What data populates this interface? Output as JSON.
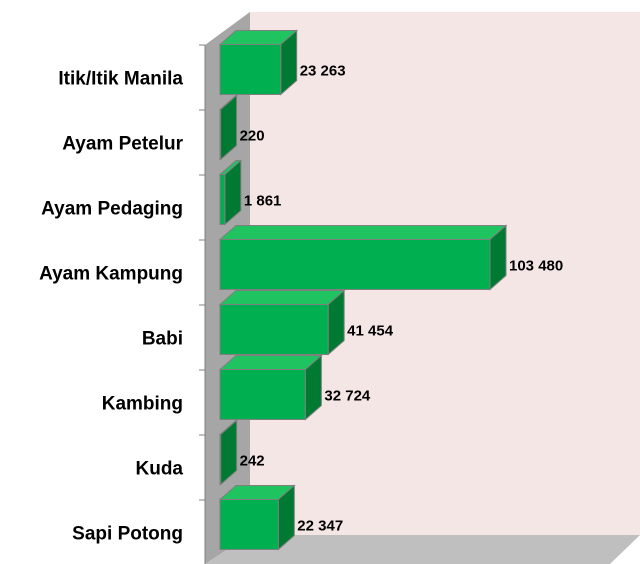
{
  "chart_data": {
    "type": "bar3d_horizontal",
    "categories": [
      "Itik/Itik Manila",
      "Ayam Petelur",
      "Ayam Pedaging",
      "Ayam Kampung",
      "Babi",
      "Kambing",
      "Kuda",
      "Sapi Potong"
    ],
    "values": [
      23263,
      220,
      1861,
      103480,
      41454,
      32724,
      242,
      22347
    ],
    "value_labels": [
      "23 263",
      "220",
      "1 861",
      "103 480",
      "41 454",
      "32 724",
      "242",
      "22 347"
    ],
    "color": "#00b050"
  }
}
